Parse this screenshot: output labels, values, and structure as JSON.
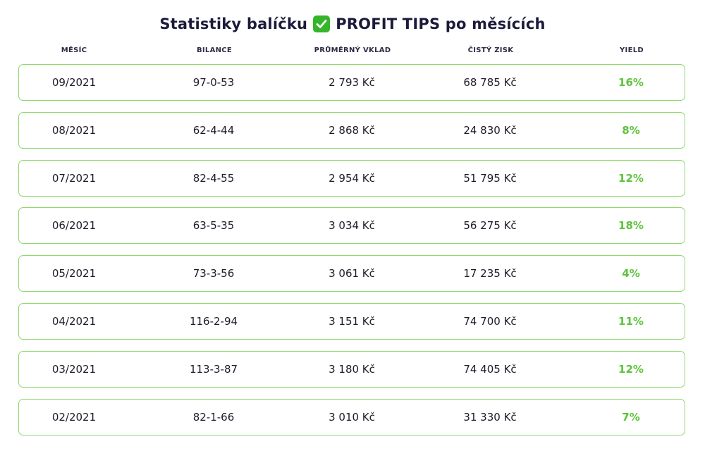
{
  "title": {
    "prefix": "Statistiky balíčku",
    "icon": "green-check-mark-icon",
    "suffix": "PROFIT TIPS po měsících"
  },
  "columns": [
    "MĚSÍC",
    "BILANCE",
    "PRŮMĚRNÝ VKLAD",
    "ČISTÝ ZISK",
    "YIELD"
  ],
  "rows": [
    {
      "month": "09/2021",
      "balance": "97-0-53",
      "avg_stake": "2 793 Kč",
      "net_profit": "68 785 Kč",
      "yield": "16%"
    },
    {
      "month": "08/2021",
      "balance": "62-4-44",
      "avg_stake": "2 868 Kč",
      "net_profit": "24 830 Kč",
      "yield": "8%"
    },
    {
      "month": "07/2021",
      "balance": "82-4-55",
      "avg_stake": "2 954 Kč",
      "net_profit": "51 795 Kč",
      "yield": "12%"
    },
    {
      "month": "06/2021",
      "balance": "63-5-35",
      "avg_stake": "3 034 Kč",
      "net_profit": "56 275 Kč",
      "yield": "18%"
    },
    {
      "month": "05/2021",
      "balance": "73-3-56",
      "avg_stake": "3 061 Kč",
      "net_profit": "17 235 Kč",
      "yield": "4%"
    },
    {
      "month": "04/2021",
      "balance": "116-2-94",
      "avg_stake": "3 151 Kč",
      "net_profit": "74 700 Kč",
      "yield": "11%"
    },
    {
      "month": "03/2021",
      "balance": "113-3-87",
      "avg_stake": "3 180 Kč",
      "net_profit": "74 405 Kč",
      "yield": "12%"
    },
    {
      "month": "02/2021",
      "balance": "82-1-66",
      "avg_stake": "3 010 Kč",
      "net_profit": "31 330 Kč",
      "yield": "7%"
    }
  ],
  "colors": {
    "row_border": "#8dd96c",
    "yield_text": "#5cc43a",
    "check_background": "#35b52a",
    "title_text": "#1c1a3a"
  }
}
